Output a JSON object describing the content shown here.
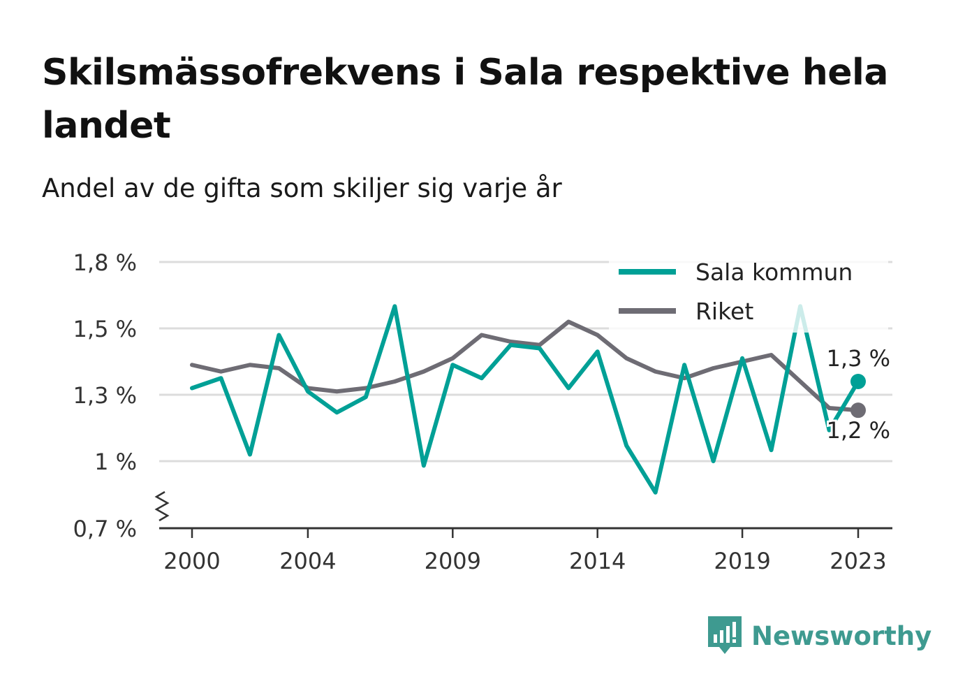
{
  "title": "Skilsmässofrekvens i Sala respektive hela landet",
  "subtitle": "Andel av de gifta som skiljer sig varje år",
  "brand": {
    "name": "Newsworthy",
    "icon": "bar-chart-speech-bubble-icon",
    "color": "#3e9a90"
  },
  "chart_data": {
    "type": "line",
    "x": [
      2000,
      2001,
      2002,
      2003,
      2004,
      2005,
      2006,
      2007,
      2008,
      2009,
      2010,
      2011,
      2012,
      2013,
      2014,
      2015,
      2016,
      2017,
      2018,
      2019,
      2020,
      2021,
      2022,
      2023
    ],
    "x_ticks": [
      2000,
      2004,
      2009,
      2014,
      2019,
      2023
    ],
    "y_ticks": [
      {
        "value": 0.7,
        "label": "0,7 %"
      },
      {
        "value": 1.0,
        "label": "1 %"
      },
      {
        "value": 1.3,
        "label": "1,3 %"
      },
      {
        "value": 1.5,
        "label": "1,5 %"
      },
      {
        "value": 1.8,
        "label": "1,8 %"
      }
    ],
    "ylim": [
      0.7,
      1.8
    ],
    "axis_break": true,
    "grid": true,
    "legend_position": "top-right",
    "series": [
      {
        "name": "Sala kommun",
        "color": "#00a096",
        "values": [
          1.32,
          1.35,
          1.03,
          1.48,
          1.31,
          1.22,
          1.29,
          1.6,
          0.98,
          1.39,
          1.35,
          1.45,
          1.44,
          1.32,
          1.43,
          1.07,
          0.86,
          1.39,
          1.0,
          1.41,
          1.05,
          1.6,
          1.14,
          1.34
        ],
        "end_label": "1,3 %"
      },
      {
        "name": "Riket",
        "color": "#6e6c74",
        "values": [
          1.39,
          1.37,
          1.39,
          1.38,
          1.32,
          1.31,
          1.32,
          1.34,
          1.37,
          1.41,
          1.48,
          1.46,
          1.45,
          1.53,
          1.48,
          1.41,
          1.37,
          1.35,
          1.38,
          1.4,
          1.42,
          1.34,
          1.24,
          1.23
        ],
        "end_label": "1,2 %"
      }
    ]
  }
}
